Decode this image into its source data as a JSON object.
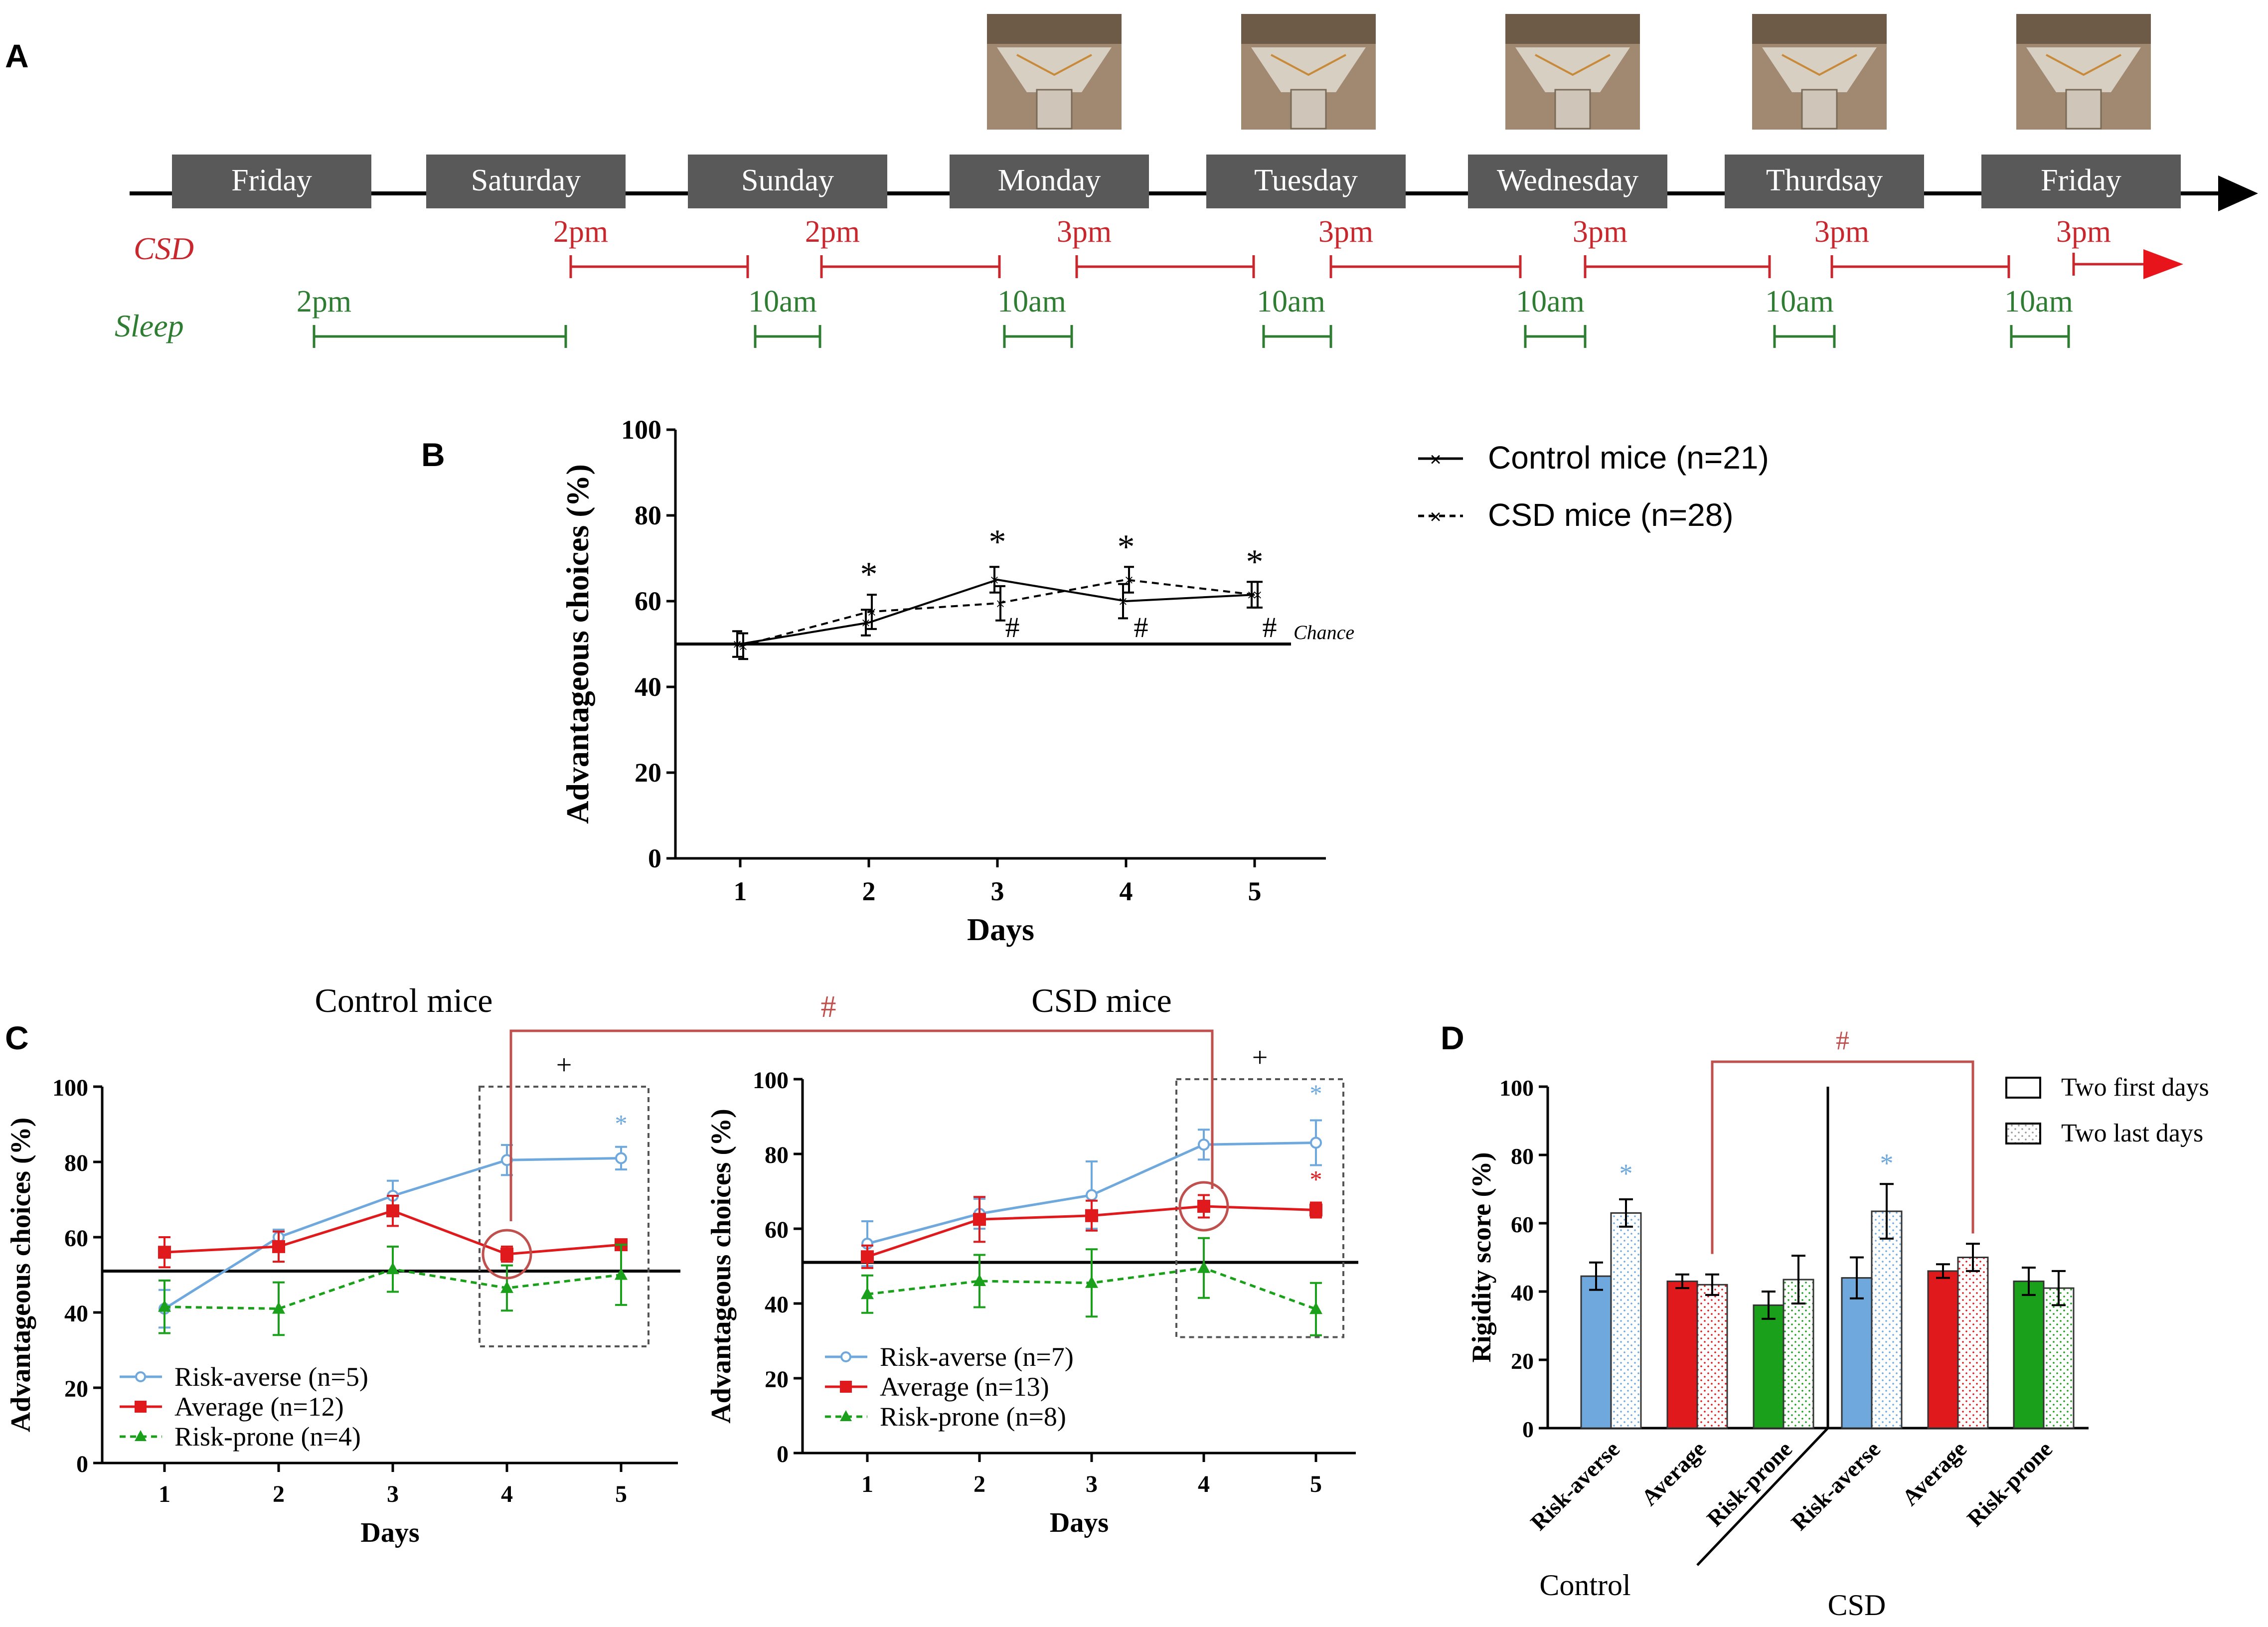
{
  "panel_labels": {
    "a": "A",
    "b": "B",
    "c": "C",
    "d": "D"
  },
  "colors": {
    "csd": "#c8282d",
    "sleep": "#2e7d32",
    "day_box": "#595959",
    "risk_averse": "#6ea8dc",
    "average": "#e0191c",
    "risk_prone": "#1aa01a",
    "highlight": "#c0504d"
  },
  "timeline": {
    "days": [
      "Friday",
      "Saturday",
      "Sunday",
      "Monday",
      "Tuesday",
      "Wednesday",
      "Thurdsay",
      "Friday"
    ],
    "csd_label": "CSD",
    "sleep_label": "Sleep",
    "csd_starts": [
      "2pm",
      "2pm",
      "3pm",
      "3pm",
      "3pm",
      "3pm",
      "3pm"
    ],
    "sleep_starts": [
      "2pm",
      "10am",
      "10am",
      "10am",
      "10am",
      "10am",
      "10am"
    ],
    "photo_icon": "maze-photo-icon"
  },
  "chart_data": [
    {
      "id": "B",
      "type": "line",
      "xlabel": "Days",
      "ylabel": "Advantageous choices (%)",
      "x": [
        1,
        2,
        3,
        4,
        5
      ],
      "ylim": [
        0,
        100
      ],
      "yticks": [
        0,
        20,
        40,
        60,
        80,
        100
      ],
      "chance_value": 50,
      "chance_label": "Chance",
      "series": [
        {
          "name": "Control mice (n=21)",
          "style": "solid",
          "values": [
            50,
            55,
            65,
            60,
            61.5
          ],
          "err": [
            3,
            3,
            3,
            4,
            3
          ]
        },
        {
          "name": "CSD mice (n=28)",
          "style": "dashed",
          "values": [
            49.5,
            57.5,
            59.5,
            65,
            61.5
          ],
          "err": [
            3,
            4,
            4,
            3,
            3
          ]
        }
      ],
      "star_marks": [
        "*",
        "*",
        "*",
        "*"
      ],
      "hash_marks": [
        "#",
        "#",
        "#"
      ]
    },
    {
      "id": "C-control",
      "type": "line",
      "title": "Control mice",
      "xlabel": "Days",
      "ylabel": "Advantageous choices (%)",
      "x": [
        1,
        2,
        3,
        4,
        5
      ],
      "ylim": [
        0,
        100
      ],
      "yticks": [
        0,
        20,
        40,
        60,
        80,
        100
      ],
      "chance_value": 51,
      "series": [
        {
          "name": "Risk-averse (n=5)",
          "values": [
            41,
            60,
            71,
            80.5,
            81
          ],
          "err": [
            5,
            2,
            4,
            4,
            3
          ]
        },
        {
          "name": "Average (n=12)",
          "values": [
            56,
            57.5,
            67,
            55.5,
            58
          ],
          "err": [
            4,
            4,
            4,
            2,
            1
          ]
        },
        {
          "name": "Risk-prone (n=4)",
          "values": [
            41.5,
            41,
            51.5,
            46.5,
            50
          ],
          "err": [
            7,
            7,
            6,
            6,
            8
          ]
        }
      ],
      "plus_mark": "+",
      "star_mark": "*"
    },
    {
      "id": "C-csd",
      "type": "line",
      "title": "CSD mice",
      "xlabel": "Days",
      "ylabel": "Advantageous choices (%)",
      "x": [
        1,
        2,
        3,
        4,
        5
      ],
      "ylim": [
        0,
        100
      ],
      "yticks": [
        0,
        20,
        40,
        60,
        80,
        100
      ],
      "chance_value": 51,
      "series": [
        {
          "name": "Risk-averse (n=7)",
          "values": [
            56,
            64,
            69,
            82.5,
            83
          ],
          "err": [
            6,
            4,
            9,
            4,
            6
          ]
        },
        {
          "name": "Average (n=13)",
          "values": [
            52.5,
            62.5,
            63.5,
            66,
            65
          ],
          "err": [
            3,
            6,
            4,
            3,
            2
          ]
        },
        {
          "name": "Risk-prone (n=8)",
          "values": [
            42.5,
            46,
            45.5,
            49.5,
            38.5
          ],
          "err": [
            5,
            7,
            9,
            8,
            7
          ]
        }
      ],
      "plus_mark": "+",
      "star_marks": [
        "*",
        "*"
      ]
    },
    {
      "id": "D",
      "type": "bar",
      "ylabel": "Rigidity score (%)",
      "ylim": [
        0,
        100
      ],
      "yticks": [
        0,
        20,
        40,
        60,
        80,
        100
      ],
      "categories": [
        "Risk-averse",
        "Average",
        "Risk-prone",
        "Risk-averse",
        "Average",
        "Risk-prone"
      ],
      "groups": [
        "Control",
        "CSD"
      ],
      "series": [
        {
          "name": "Two first days",
          "values": [
            44.5,
            43,
            36,
            44,
            46,
            43
          ],
          "err": [
            4,
            2,
            4,
            6,
            2,
            4
          ]
        },
        {
          "name": "Two last days",
          "values": [
            63,
            42,
            43.5,
            63.5,
            50,
            41
          ],
          "err": [
            4,
            3,
            7,
            8,
            4,
            5
          ]
        }
      ],
      "star_marks": [
        "*",
        "*"
      ]
    }
  ],
  "comparison_hash": "#",
  "control_group_label": "Control",
  "csd_group_label": "CSD"
}
